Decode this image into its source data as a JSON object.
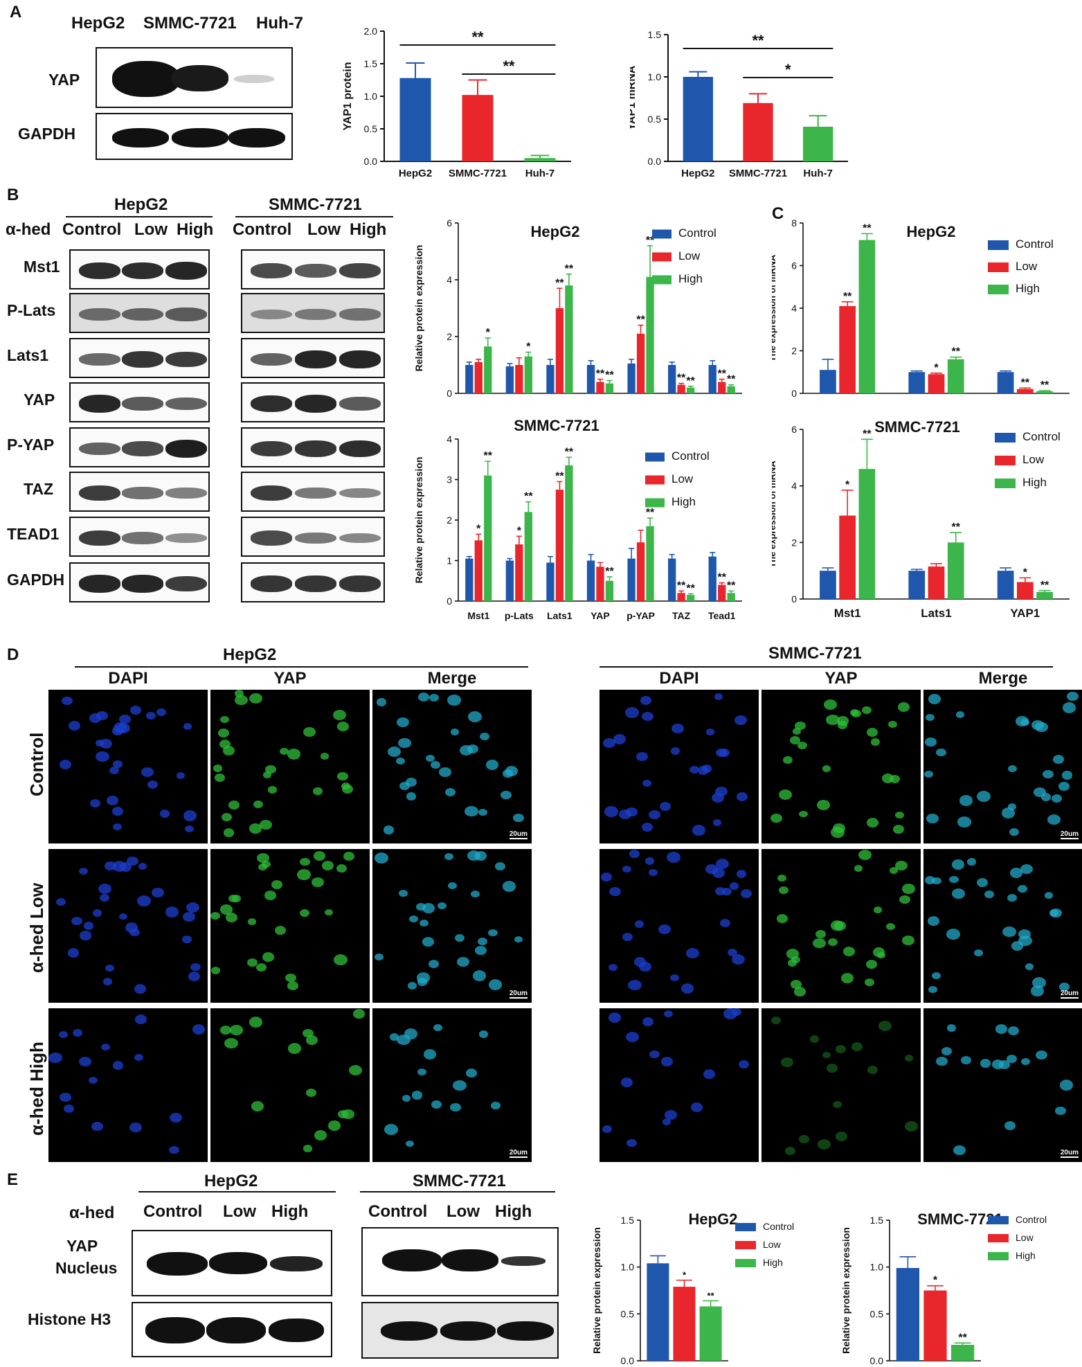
{
  "colors": {
    "control": "#1f57ad",
    "low": "#e8262b",
    "high": "#3cb54a",
    "black": "#111111"
  },
  "panels": {
    "A": "A",
    "B": "B",
    "C": "C",
    "D": "D",
    "E": "E"
  },
  "A": {
    "blot_header": [
      "HepG2",
      "SMMC-7721",
      "Huh-7"
    ],
    "blot_rows": [
      "YAP",
      "GAPDH"
    ]
  },
  "B": {
    "group_hepg2": "HepG2",
    "group_smmc": "SMMC-7721",
    "treatment_label": "α-hed",
    "hepg2_cols": [
      "Control",
      "Low",
      "High"
    ],
    "smmc_cols": [
      "Control",
      "Low",
      "High"
    ],
    "blot_rows": [
      "Mst1",
      "P-Lats",
      "Lats1",
      "YAP",
      "P-YAP",
      "TAZ",
      "TEAD1",
      "GAPDH"
    ]
  },
  "D": {
    "group_hepg2": "HepG2",
    "group_smmc": "SMMC-7721",
    "cols": [
      "DAPI",
      "YAP",
      "Merge"
    ],
    "rows": [
      "Control",
      "α-hed  Low",
      "α-hed  High"
    ],
    "scale": "20um"
  },
  "E": {
    "treatment_label": "α-hed",
    "group_hepg2": "HepG2",
    "group_smmc": "SMMC-7721",
    "hepg2_cols": [
      "Control",
      "Low",
      "High"
    ],
    "smmc_cols": [
      "Control",
      "Low",
      "High"
    ],
    "row1_line1": "YAP",
    "row1_line2": "Nucleus",
    "row2": "Histone H3"
  },
  "chart_data": [
    {
      "id": "A1",
      "type": "bar",
      "title": "",
      "xlabel": "",
      "ylabel": "YAP1 protein",
      "ylim": [
        0,
        2.0
      ],
      "yticks": [
        "0.0",
        "0.5",
        "1.0",
        "1.5",
        "2.0"
      ],
      "categories": [
        "HepG2",
        "SMMC-7721",
        "Huh-7"
      ],
      "values": [
        1.28,
        1.02,
        0.05
      ],
      "errors": [
        0.23,
        0.23,
        0.04
      ],
      "bar_colors": [
        "#1f57ad",
        "#e8262b",
        "#3cb54a"
      ],
      "significance": [
        {
          "from": 0,
          "to": 2,
          "label": "**"
        },
        {
          "from": 1,
          "to": 2,
          "label": "**"
        }
      ]
    },
    {
      "id": "A2",
      "type": "bar",
      "title": "",
      "xlabel": "",
      "ylabel": "YAP1 mRNA",
      "ylim": [
        0,
        1.5
      ],
      "yticks": [
        "0.0",
        "0.5",
        "1.0",
        "1.5"
      ],
      "categories": [
        "HepG2",
        "SMMC-7721",
        "Huh-7"
      ],
      "values": [
        1.0,
        0.69,
        0.41
      ],
      "errors": [
        0.06,
        0.11,
        0.13
      ],
      "bar_colors": [
        "#1f57ad",
        "#e8262b",
        "#3cb54a"
      ],
      "significance": [
        {
          "from": 0,
          "to": 2,
          "label": "**"
        },
        {
          "from": 1,
          "to": 2,
          "label": "*"
        }
      ]
    },
    {
      "id": "B1",
      "type": "bar",
      "title": "HepG2",
      "ylabel": "Relative protein expression",
      "ylim": [
        0,
        6
      ],
      "yticks": [
        "0",
        "2",
        "4",
        "6"
      ],
      "categories": [
        "Mst1",
        "p-Lats",
        "Lats1",
        "YAP",
        "p-YAP",
        "TAZ",
        "Tead1"
      ],
      "legend": [
        "Control",
        "Low",
        "High"
      ],
      "series": [
        {
          "name": "Control",
          "values": [
            1.0,
            0.95,
            1.0,
            1.0,
            1.05,
            1.0,
            1.0
          ],
          "errors": [
            0.1,
            0.1,
            0.2,
            0.15,
            0.15,
            0.1,
            0.15
          ],
          "stars": [
            "",
            "",
            "",
            "",
            "",
            "",
            ""
          ]
        },
        {
          "name": "Low",
          "values": [
            1.1,
            1.0,
            3.0,
            0.4,
            2.1,
            0.3,
            0.4
          ],
          "errors": [
            0.1,
            0.25,
            0.7,
            0.1,
            0.3,
            0.05,
            0.1
          ],
          "stars": [
            "",
            "",
            "**",
            "**",
            "**",
            "**",
            "**"
          ]
        },
        {
          "name": "High",
          "values": [
            1.65,
            1.3,
            3.8,
            0.35,
            4.1,
            0.2,
            0.25
          ],
          "errors": [
            0.3,
            0.15,
            0.4,
            0.1,
            1.1,
            0.05,
            0.05
          ],
          "stars": [
            "*",
            "*",
            "**",
            "**",
            "**",
            "**",
            "**"
          ]
        }
      ]
    },
    {
      "id": "B2",
      "type": "bar",
      "title": "SMMC-7721",
      "ylabel": "Relative protein expression",
      "ylim": [
        0,
        4
      ],
      "yticks": [
        "0",
        "1",
        "2",
        "3",
        "4"
      ],
      "categories": [
        "Mst1",
        "p-Lats",
        "Lats1",
        "YAP",
        "p-YAP",
        "TAZ",
        "Tead1"
      ],
      "legend": [
        "Control",
        "Low",
        "High"
      ],
      "series": [
        {
          "name": "Control",
          "values": [
            1.05,
            1.0,
            0.95,
            1.0,
            1.05,
            1.05,
            1.1
          ],
          "errors": [
            0.05,
            0.05,
            0.15,
            0.15,
            0.25,
            0.1,
            0.1
          ],
          "stars": [
            "",
            "",
            "",
            "",
            "",
            "",
            ""
          ]
        },
        {
          "name": "Low",
          "values": [
            1.5,
            1.4,
            2.75,
            0.85,
            1.45,
            0.2,
            0.4
          ],
          "errors": [
            0.15,
            0.2,
            0.2,
            0.1,
            0.3,
            0.05,
            0.05
          ],
          "stars": [
            "*",
            "*",
            "**",
            "",
            "",
            "**",
            "**"
          ]
        },
        {
          "name": "High",
          "values": [
            3.1,
            2.2,
            3.35,
            0.5,
            1.85,
            0.15,
            0.2
          ],
          "errors": [
            0.35,
            0.25,
            0.2,
            0.1,
            0.2,
            0.03,
            0.05
          ],
          "stars": [
            "**",
            "**",
            "**",
            "**",
            "**",
            "**",
            "**"
          ]
        }
      ]
    },
    {
      "id": "C1",
      "type": "bar",
      "title": "HepG2",
      "ylabel": "The expression of  mRNA",
      "ylim": [
        0,
        8
      ],
      "yticks": [
        "0",
        "2",
        "4",
        "6",
        "8"
      ],
      "categories": [
        "Mst1",
        "Lats1",
        "YAP1"
      ],
      "legend": [
        "Control",
        "Low",
        "High"
      ],
      "series": [
        {
          "name": "Control",
          "values": [
            1.1,
            1.0,
            1.0
          ],
          "errors": [
            0.5,
            0.05,
            0.05
          ],
          "stars": [
            "",
            "",
            ""
          ]
        },
        {
          "name": "Low",
          "values": [
            4.1,
            0.9,
            0.2
          ],
          "errors": [
            0.2,
            0.05,
            0.05
          ],
          "stars": [
            "**",
            "*",
            "**"
          ]
        },
        {
          "name": "High",
          "values": [
            7.2,
            1.6,
            0.1
          ],
          "errors": [
            0.3,
            0.1,
            0.03
          ],
          "stars": [
            "**",
            "**",
            "**"
          ]
        }
      ]
    },
    {
      "id": "C2",
      "type": "bar",
      "title": "SMMC-7721",
      "ylabel": "The expression of  mRNA",
      "ylim": [
        0,
        6
      ],
      "yticks": [
        "0",
        "2",
        "4",
        "6"
      ],
      "categories": [
        "Mst1",
        "Lats1",
        "YAP1"
      ],
      "legend": [
        "Control",
        "Low",
        "High"
      ],
      "series": [
        {
          "name": "Control",
          "values": [
            1.0,
            1.0,
            1.0
          ],
          "errors": [
            0.1,
            0.05,
            0.1
          ],
          "stars": [
            "",
            "",
            ""
          ]
        },
        {
          "name": "Low",
          "values": [
            2.95,
            1.15,
            0.6
          ],
          "errors": [
            0.9,
            0.1,
            0.15
          ],
          "stars": [
            "*",
            "",
            "*"
          ]
        },
        {
          "name": "High",
          "values": [
            4.6,
            2.0,
            0.25
          ],
          "errors": [
            1.05,
            0.35,
            0.05
          ],
          "stars": [
            "**",
            "**",
            "**"
          ]
        }
      ]
    },
    {
      "id": "E1",
      "type": "bar",
      "title": "HepG2",
      "xlabel": "YAP Nucleus",
      "ylabel": "Relative protein expression",
      "ylim": [
        0,
        1.5
      ],
      "yticks": [
        "0.0",
        "0.5",
        "1.0",
        "1.5"
      ],
      "categories": [
        "YAP Nucleus"
      ],
      "legend": [
        "Control",
        "Low",
        "High"
      ],
      "series": [
        {
          "name": "Control",
          "values": [
            1.04
          ],
          "errors": [
            0.08
          ],
          "stars": [
            ""
          ]
        },
        {
          "name": "Low",
          "values": [
            0.79
          ],
          "errors": [
            0.07
          ],
          "stars": [
            "*"
          ]
        },
        {
          "name": "High",
          "values": [
            0.58
          ],
          "errors": [
            0.06
          ],
          "stars": [
            "**"
          ]
        }
      ]
    },
    {
      "id": "E2",
      "type": "bar",
      "title": "SMMC-7721",
      "xlabel": "YAP Nucleus",
      "ylabel": "Relative protein expression",
      "ylim": [
        0,
        1.5
      ],
      "yticks": [
        "0.0",
        "0.5",
        "1.0",
        "1.5"
      ],
      "categories": [
        "YAP Nucleus"
      ],
      "legend": [
        "Control",
        "Low",
        "High"
      ],
      "series": [
        {
          "name": "Control",
          "values": [
            0.99
          ],
          "errors": [
            0.12
          ],
          "stars": [
            ""
          ]
        },
        {
          "name": "Low",
          "values": [
            0.75
          ],
          "errors": [
            0.05
          ],
          "stars": [
            "*"
          ]
        },
        {
          "name": "High",
          "values": [
            0.17
          ],
          "errors": [
            0.02
          ],
          "stars": [
            "**"
          ]
        }
      ]
    }
  ]
}
